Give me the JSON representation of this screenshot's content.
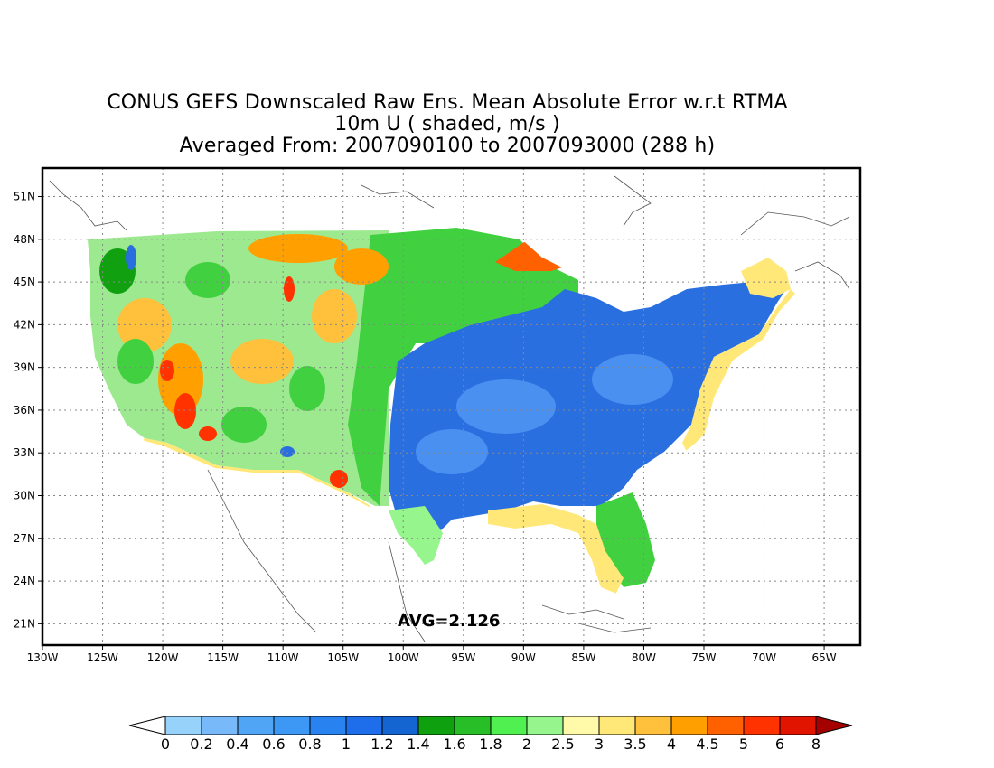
{
  "title": {
    "line1": "CONUS GEFS Downscaled Raw Ens. Mean Absolute Error w.r.t RTMA",
    "line2": "10m U ( shaded, m/s )",
    "line3": "Averaged From: 2007090100 to 2007093000 (288 h)"
  },
  "map": {
    "lon_labels": [
      "130W",
      "125W",
      "120W",
      "115W",
      "110W",
      "105W",
      "100W",
      "95W",
      "90W",
      "85W",
      "80W",
      "75W",
      "70W",
      "65W"
    ],
    "lat_labels": [
      "51N",
      "48N",
      "45N",
      "42N",
      "39N",
      "36N",
      "33N",
      "30N",
      "27N",
      "24N",
      "21N"
    ],
    "lon_range": [
      -130,
      -62
    ],
    "lat_range": [
      19.5,
      53
    ],
    "grid": true,
    "avg_label": "AVG=2.126"
  },
  "colorbar": {
    "labels": [
      "0",
      "0.2",
      "0.4",
      "0.6",
      "0.8",
      "1",
      "1.2",
      "1.4",
      "1.6",
      "1.8",
      "2",
      "2.5",
      "3",
      "3.5",
      "4",
      "4.5",
      "5",
      "6",
      "8"
    ],
    "colors": [
      "#96d2fa",
      "#78b9fa",
      "#50a5f5",
      "#3c97f5",
      "#2882f0",
      "#1e6eeb",
      "#1464d2",
      "#0fa00f",
      "#28be28",
      "#50f050",
      "#96f58c",
      "#fffaaa",
      "#ffe878",
      "#ffc03c",
      "#ffa000",
      "#ff6000",
      "#ff3200",
      "#e11400",
      "#c00000"
    ],
    "under_color": "#ffffff",
    "over_color": "#a50000"
  },
  "regions": {
    "land_outline": "#000000",
    "colors": {
      "blue": "#2a6fe0",
      "blue_light": "#4a90f0",
      "green_dark": "#10a010",
      "green": "#40d040",
      "green_light": "#96f58c",
      "yellow": "#ffe878",
      "orange": "#ffa000",
      "red": "#ff3200"
    }
  }
}
